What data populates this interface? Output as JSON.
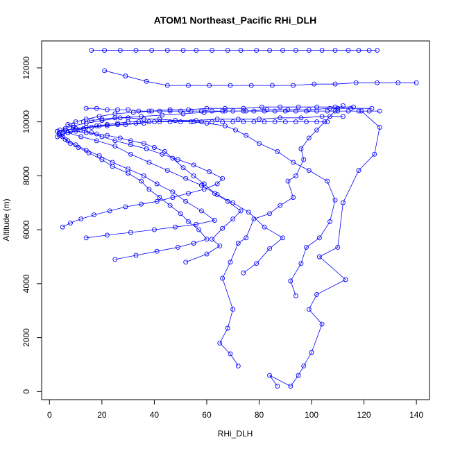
{
  "chart_data": {
    "type": "line",
    "title": "ATOM1 Northeast_Pacific RHi_DLH",
    "xlabel": "RHi_DLH",
    "ylabel": "Altitude (m)",
    "xlim": [
      -3,
      145
    ],
    "ylim": [
      -300,
      13000
    ],
    "xticks": [
      0,
      20,
      40,
      60,
      80,
      100,
      120,
      140
    ],
    "yticks": [
      0,
      2000,
      4000,
      6000,
      8000,
      10000,
      12000
    ],
    "series_color": "#0000ff",
    "marker": "open-circle",
    "grid": false,
    "series": [
      {
        "x": [
          87,
          84,
          92,
          95,
          97,
          100,
          104,
          99,
          102,
          113,
          103,
          110,
          112,
          118,
          124,
          126,
          119
        ],
        "y": [
          200,
          600,
          200,
          600,
          950,
          1450,
          2500,
          3050,
          3600,
          4150,
          5000,
          5350,
          7000,
          8200,
          8800,
          9800,
          10400
        ]
      },
      {
        "x": [
          72,
          69,
          65,
          68,
          70,
          66,
          69,
          72,
          75,
          78,
          84,
          88,
          93,
          91,
          94,
          97,
          96,
          99,
          102,
          105,
          107,
          109,
          110,
          112
        ],
        "y": [
          950,
          1400,
          1800,
          2350,
          3050,
          4200,
          4800,
          5500,
          5700,
          6400,
          6600,
          6900,
          7200,
          7800,
          8000,
          8600,
          9000,
          9400,
          9700,
          10000,
          10200,
          10400,
          10500,
          10600
        ]
      },
      {
        "x": [
          94,
          92,
          96,
          98,
          103,
          107,
          109,
          106,
          99,
          93,
          87,
          80,
          75,
          71,
          67,
          60,
          55,
          48,
          42,
          36,
          30,
          25,
          20,
          16,
          13
        ],
        "y": [
          3550,
          4100,
          4750,
          5350,
          5700,
          6300,
          7100,
          7800,
          8200,
          8500,
          8900,
          9200,
          9500,
          9700,
          9850,
          9950,
          10000,
          10050,
          10100,
          10100,
          10150,
          10150,
          10100,
          10050,
          10000
        ]
      },
      {
        "x": [
          74,
          79,
          84,
          89,
          82,
          76,
          70,
          64,
          58,
          52,
          45,
          38,
          31,
          25,
          18,
          12,
          7,
          4
        ],
        "y": [
          4400,
          4750,
          5300,
          5700,
          6100,
          6650,
          7000,
          7300,
          7650,
          7900,
          8200,
          8500,
          8800,
          9100,
          9300,
          9450,
          9600,
          9700
        ]
      },
      {
        "x": [
          52,
          60,
          65,
          62,
          66,
          70,
          73,
          68,
          63,
          59,
          55,
          51,
          47,
          44,
          40,
          36,
          31,
          27,
          22,
          18,
          14,
          10,
          7,
          5,
          3,
          3,
          6,
          10,
          16,
          22,
          29,
          36
        ],
        "y": [
          4800,
          5100,
          5400,
          5650,
          6050,
          6400,
          6700,
          7050,
          7350,
          7700,
          8000,
          8300,
          8650,
          8900,
          9050,
          9200,
          9300,
          9400,
          9500,
          9550,
          9600,
          9650,
          9600,
          9550,
          9450,
          9650,
          9700,
          9750,
          9800,
          9850,
          9900,
          9950
        ]
      },
      {
        "x": [
          25,
          33,
          41,
          49,
          55,
          60,
          57,
          53,
          50,
          46,
          42,
          38,
          35,
          30,
          24,
          20,
          15,
          11,
          8,
          6,
          4,
          8,
          13,
          19,
          26,
          33,
          40,
          48,
          56,
          64,
          72,
          80,
          88,
          96,
          104,
          112
        ],
        "y": [
          4900,
          5050,
          5200,
          5350,
          5500,
          5650,
          6000,
          6300,
          6600,
          6900,
          7200,
          7500,
          7800,
          8100,
          8350,
          8600,
          8850,
          9050,
          9200,
          9350,
          9500,
          9650,
          9750,
          9850,
          9900,
          9950,
          10000,
          10050,
          10050,
          10100,
          10100,
          10100,
          10150,
          10150,
          10200,
          10200
        ]
      },
      {
        "x": [
          14,
          22,
          31,
          40,
          48,
          56,
          63,
          58,
          52,
          47,
          41,
          36,
          30,
          24,
          19,
          14,
          10,
          7,
          5,
          4,
          6,
          9,
          14,
          20,
          27,
          35,
          43,
          51,
          59,
          67,
          75,
          83,
          91,
          99,
          107,
          115,
          123
        ],
        "y": [
          5700,
          5800,
          5900,
          6000,
          6100,
          6200,
          6350,
          6700,
          7050,
          7400,
          7700,
          8000,
          8250,
          8500,
          8750,
          8950,
          9150,
          9300,
          9450,
          9600,
          9750,
          9850,
          9950,
          10050,
          10150,
          10200,
          10250,
          10300,
          10350,
          10400,
          10400,
          10450,
          10450,
          10450,
          10500,
          10500,
          10500
        ]
      },
      {
        "x": [
          5,
          8,
          12,
          17,
          23,
          29,
          35,
          41,
          47,
          53,
          59,
          64,
          66,
          61,
          55,
          49,
          43,
          37,
          31,
          25,
          20,
          16,
          12,
          9,
          7,
          10,
          14,
          19,
          25,
          32,
          39,
          46,
          53,
          60,
          67,
          74,
          81,
          88,
          95,
          102,
          109,
          116
        ],
        "y": [
          6100,
          6250,
          6400,
          6550,
          6700,
          6850,
          6950,
          7050,
          7200,
          7350,
          7500,
          7700,
          7900,
          8150,
          8400,
          8600,
          8800,
          9000,
          9150,
          9300,
          9450,
          9600,
          9700,
          9800,
          9900,
          10000,
          10100,
          10200,
          10300,
          10350,
          10400,
          10450,
          10450,
          10500,
          10500,
          10500,
          10550,
          10550,
          10550,
          10550,
          10550,
          10550
        ]
      },
      {
        "x": [
          16,
          21,
          27,
          33,
          39,
          45,
          51,
          56,
          62,
          68,
          73,
          79,
          84,
          89,
          94,
          99,
          104,
          109,
          114,
          118,
          122,
          125
        ],
        "y": [
          12650,
          12650,
          12650,
          12650,
          12650,
          12650,
          12650,
          12650,
          12650,
          12650,
          12650,
          12650,
          12650,
          12650,
          12650,
          12650,
          12650,
          12650,
          12650,
          12650,
          12650,
          12650
        ]
      },
      {
        "x": [
          21,
          29,
          37,
          45,
          53,
          61,
          69,
          77,
          85,
          93,
          101,
          109,
          117,
          125,
          133,
          140
        ],
        "y": [
          11900,
          11700,
          11500,
          11350,
          11350,
          11350,
          11350,
          11350,
          11350,
          11350,
          11400,
          11400,
          11450,
          11450,
          11450,
          11450
        ]
      },
      {
        "x": [
          14,
          18,
          22,
          26,
          30,
          34,
          38,
          42,
          46,
          50,
          54,
          58,
          62,
          66,
          70,
          74,
          78,
          82,
          86,
          90,
          94,
          98,
          102,
          106,
          110,
          114,
          118,
          122,
          126
        ],
        "y": [
          10500,
          10500,
          10450,
          10450,
          10450,
          10400,
          10400,
          10400,
          10400,
          10400,
          10400,
          10400,
          10400,
          10400,
          10400,
          10400,
          10400,
          10400,
          10400,
          10400,
          10400,
          10400,
          10400,
          10400,
          10400,
          10400,
          10400,
          10400,
          10400
        ]
      },
      {
        "x": [
          3,
          6,
          10,
          14,
          18,
          22,
          26,
          30,
          34,
          38,
          42,
          46,
          50,
          54,
          58,
          62,
          66,
          70,
          74,
          78,
          82,
          86,
          90,
          94,
          98,
          102,
          106
        ],
        "y": [
          9650,
          9700,
          9750,
          9800,
          9850,
          9900,
          9950,
          10000,
          10000,
          10000,
          10000,
          10000,
          10000,
          10000,
          10000,
          10000,
          10000,
          10000,
          10000,
          10000,
          10000,
          10000,
          10000,
          10000,
          10000,
          10000,
          10000
        ]
      }
    ]
  }
}
